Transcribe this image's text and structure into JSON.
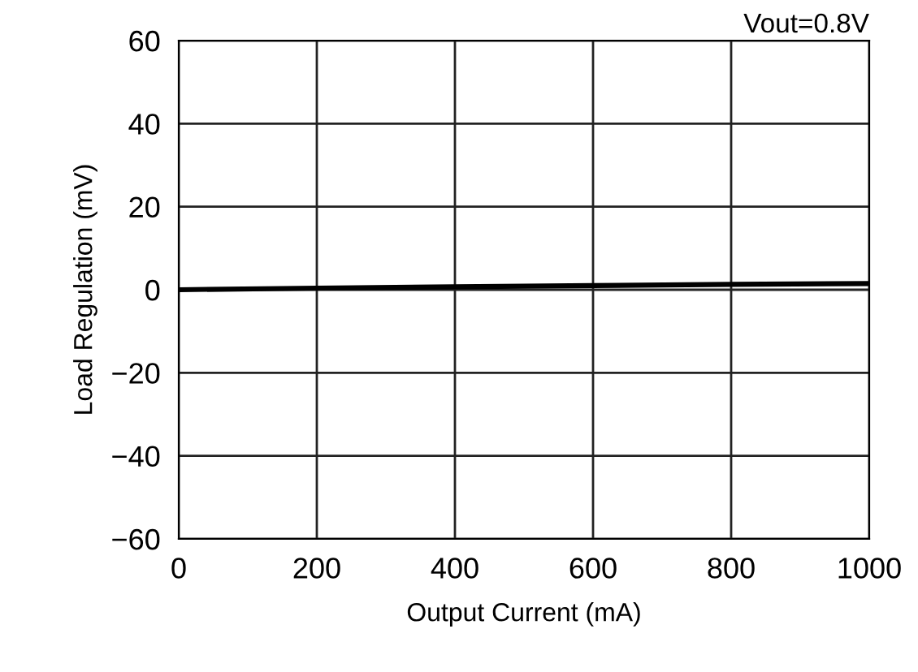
{
  "chart_data": {
    "type": "line",
    "xlabel": "Output Current (mA)",
    "ylabel": "Load Regulation (mV)",
    "annotations": [
      "Vout=0.8V"
    ],
    "x": [
      0,
      200,
      400,
      600,
      800,
      1000
    ],
    "series": [
      {
        "color": "#000000",
        "values": [
          0,
          0.4,
          0.7,
          1.0,
          1.3,
          1.5
        ]
      }
    ],
    "xlim": [
      0,
      1000
    ],
    "xticks": [
      0,
      200,
      400,
      600,
      800,
      1000
    ],
    "ylim": [
      -60,
      60
    ],
    "yticks": [
      {
        "value": -60,
        "label": "−60"
      },
      {
        "value": -40,
        "label": "−40"
      },
      {
        "value": -20,
        "label": "−20"
      },
      0,
      20,
      40,
      60
    ],
    "grid": true,
    "legend": false,
    "marker": "none",
    "line_style": "solid"
  }
}
